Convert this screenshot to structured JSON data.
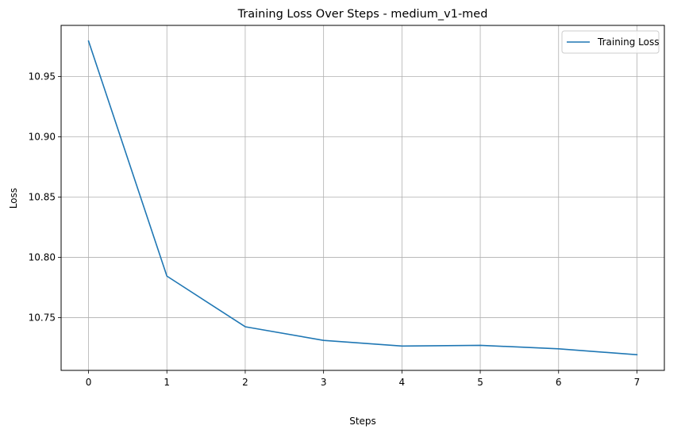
{
  "chart_data": {
    "type": "line",
    "title": "Training Loss Over Steps - medium_v1-med",
    "xlabel": "Steps",
    "ylabel": "Loss",
    "x": [
      0,
      1,
      2,
      3,
      4,
      5,
      6,
      7
    ],
    "series": [
      {
        "name": "Training Loss",
        "color": "#1f77b4",
        "values": [
          10.9795,
          10.7845,
          10.7425,
          10.7312,
          10.7265,
          10.7271,
          10.7242,
          10.7193
        ]
      }
    ],
    "xticks": [
      0,
      1,
      2,
      3,
      4,
      5,
      6,
      7
    ],
    "xtick_labels": [
      "0",
      "1",
      "2",
      "3",
      "4",
      "5",
      "6",
      "7"
    ],
    "yticks": [
      10.75,
      10.8,
      10.85,
      10.9,
      10.95
    ],
    "ytick_labels": [
      "10.75",
      "10.80",
      "10.85",
      "10.90",
      "10.95"
    ],
    "xlim": [
      -0.35,
      7.35
    ],
    "ylim": [
      10.7063,
      10.9925
    ],
    "grid": true,
    "legend_position": "top-right",
    "grid_color": "#b0b0b0"
  }
}
